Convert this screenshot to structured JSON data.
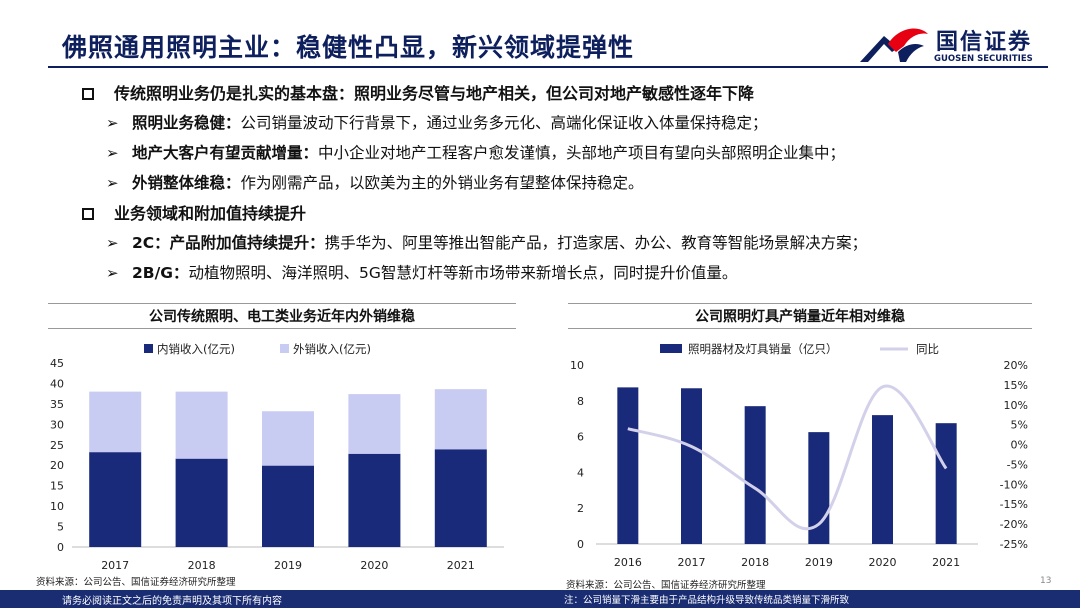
{
  "header": {
    "title": "佛照通用照明主业：稳健性凸显，新兴领域提弹性",
    "logo_cn": "国信证券",
    "logo_en": "GUOSEN SECURITIES",
    "brand_color": "#0d1f5c",
    "logo_red": "#e60012"
  },
  "sections": [
    {
      "heading": "传统照明业务仍是扎实的基本盘：照明业务尽管与地产相关，但公司对地产敏感性逐年下降",
      "items": [
        {
          "lead": "照明业务稳健：",
          "text": "公司销量波动下行背景下，通过业务多元化、高端化保证收入体量保持稳定；"
        },
        {
          "lead": "地产大客户有望贡献增量：",
          "text": "中小企业对地产工程客户愈发谨慎，头部地产项目有望向头部照明企业集中；"
        },
        {
          "lead": "外销整体维稳：",
          "text": "作为刚需产品，以欧美为主的外销业务有望整体保持稳定。"
        }
      ]
    },
    {
      "heading": "业务领域和附加值持续提升",
      "items": [
        {
          "lead": "2C：产品附加值持续提升：",
          "text": "携手华为、阿里等推出智能产品，打造家居、办公、教育等智能场景解决方案；"
        },
        {
          "lead": "2B/G：",
          "text": "动植物照明、海洋照明、5G智慧灯杆等新市场带来新增长点，同时提升价值量。"
        }
      ]
    }
  ],
  "chart_data": [
    {
      "type": "bar",
      "stacked": true,
      "title": "公司传统照明、电工类业务近年内外销维稳",
      "categories": [
        "2017",
        "2018",
        "2019",
        "2020",
        "2021"
      ],
      "series": [
        {
          "name": "内销收入(亿元)",
          "values": [
            23.2,
            21.6,
            19.9,
            22.8,
            23.9
          ],
          "color": "#1a2a7a"
        },
        {
          "name": "外销收入(亿元)",
          "values": [
            14.8,
            16.4,
            13.3,
            14.6,
            14.7
          ],
          "color": "#c9ccf2"
        }
      ],
      "ylim": [
        0,
        45
      ],
      "yticks": [
        "0",
        "5",
        "10",
        "15",
        "20",
        "25",
        "30",
        "35",
        "40",
        "45"
      ],
      "legend": "top",
      "grid": false,
      "source": "资料来源：公司公告、国信证券经济研究所整理"
    },
    {
      "type": "bar",
      "title": "公司照明灯具产销量近年相对维稳",
      "categories": [
        "2016",
        "2017",
        "2018",
        "2019",
        "2020",
        "2021"
      ],
      "series": [
        {
          "name": "照明器材及灯具销量（亿只）",
          "values": [
            8.75,
            8.7,
            7.7,
            6.25,
            7.2,
            6.75
          ],
          "color": "#1a2a7a",
          "axis": "left"
        },
        {
          "name": "同比",
          "type": "line",
          "values": [
            4,
            -0.5,
            -11,
            -20,
            14.5,
            -6
          ],
          "color": "#d3d1ea",
          "axis": "right"
        }
      ],
      "ylim": [
        0,
        10
      ],
      "yticks": [
        "0",
        "2",
        "4",
        "6",
        "8",
        "10"
      ],
      "y2lim": [
        -25,
        20
      ],
      "y2ticks": [
        "-25%",
        "-20%",
        "-15%",
        "-10%",
        "-5%",
        "0%",
        "5%",
        "10%",
        "15%",
        "20%"
      ],
      "legend": "top",
      "grid": false,
      "source": "资料来源：公司公告、国信证券经济研究所整理"
    }
  ],
  "page_number": "13",
  "footer": {
    "left": "请务必阅读正文之后的免责声明及其项下所有内容",
    "note": "注：公司销量下滑主要由于产品结构升级导致传统品类销量下滑所致",
    "bar_color": "#1a2d73"
  }
}
